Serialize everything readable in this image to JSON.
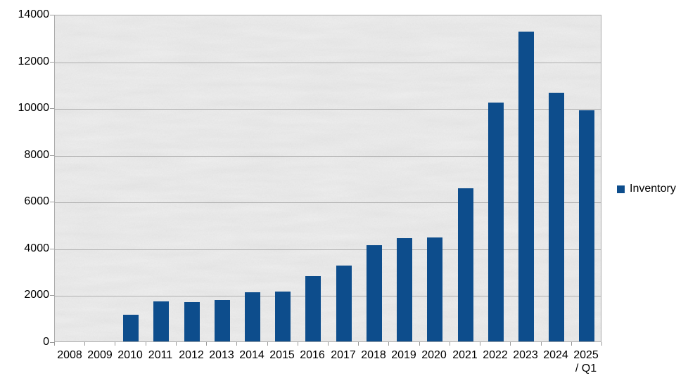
{
  "chart_data": {
    "type": "bar",
    "title": "",
    "xlabel": "",
    "ylabel": "",
    "categories": [
      "2008",
      "2009",
      "2010",
      "2011",
      "2012",
      "2013",
      "2014",
      "2015",
      "2016",
      "2017",
      "2018",
      "2019",
      "2020",
      "2021",
      "2022",
      "2023",
      "2024",
      "2025 / Q1"
    ],
    "series": [
      {
        "name": "Inventory",
        "values": [
          0,
          0,
          1130,
          1700,
          1690,
          1760,
          2100,
          2140,
          2800,
          3250,
          4120,
          4430,
          4460,
          6560,
          10200,
          13250,
          10650,
          9880
        ]
      }
    ],
    "ylim": [
      0,
      14000
    ],
    "y_ticks": [
      0,
      2000,
      4000,
      6000,
      8000,
      10000,
      12000,
      14000
    ],
    "grid": true,
    "legend_position": "right",
    "plot_background": "gray concrete texture",
    "colors": {
      "bar": "#0d4d8c",
      "grid": "#a3a3a3",
      "axis_tick": "#9a9a9a",
      "plot_border": "#ababab",
      "plot_bg_base": "#cccccc",
      "text": "#000000",
      "page_bg": "#ffffff"
    }
  }
}
